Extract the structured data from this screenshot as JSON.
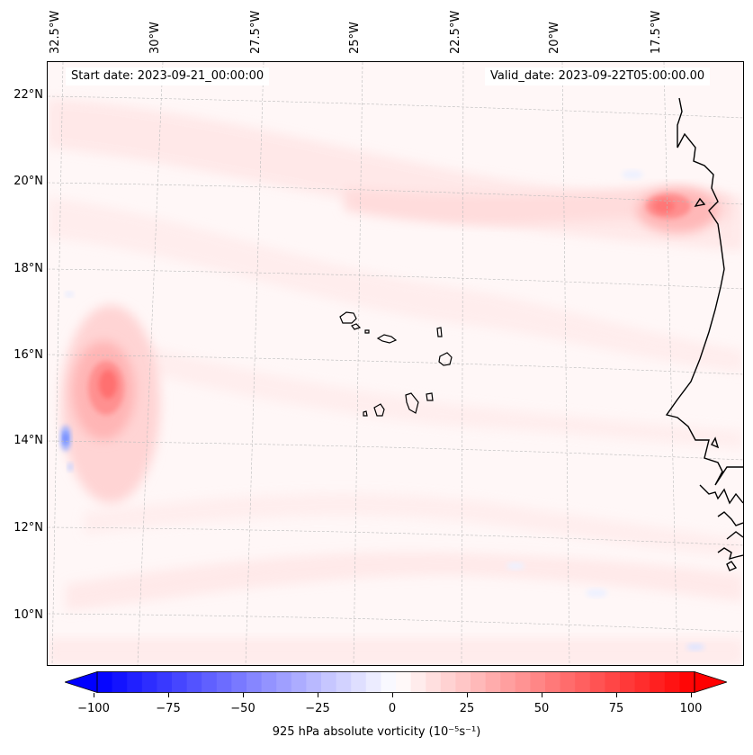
{
  "info": {
    "start_date": "Start date: 2023-09-21_00:00:00",
    "valid_date": "Valid_date: 2023-09-22T05:00:00.00"
  },
  "longitudes": [
    "32.5°W",
    "30°W",
    "27.5°W",
    "25°W",
    "22.5°W",
    "20°W",
    "17.5°W"
  ],
  "latitudes": [
    "22°N",
    "20°N",
    "18°N",
    "16°N",
    "14°N",
    "12°N",
    "10°N"
  ],
  "colorbar": {
    "label_prefix": "925 hPa absolute vorticity (10",
    "label": "925 hPa absolute vorticity (10⁻⁵s⁻¹)",
    "ticks": [
      "−100",
      "−75",
      "−50",
      "−25",
      "0",
      "25",
      "50",
      "75",
      "100"
    ],
    "min": -100,
    "max": 100,
    "neg_color": "#0000ff",
    "pos_color": "#ff0000"
  },
  "colors": {
    "coast": "#000000",
    "grid": "#bbbbbb"
  }
}
